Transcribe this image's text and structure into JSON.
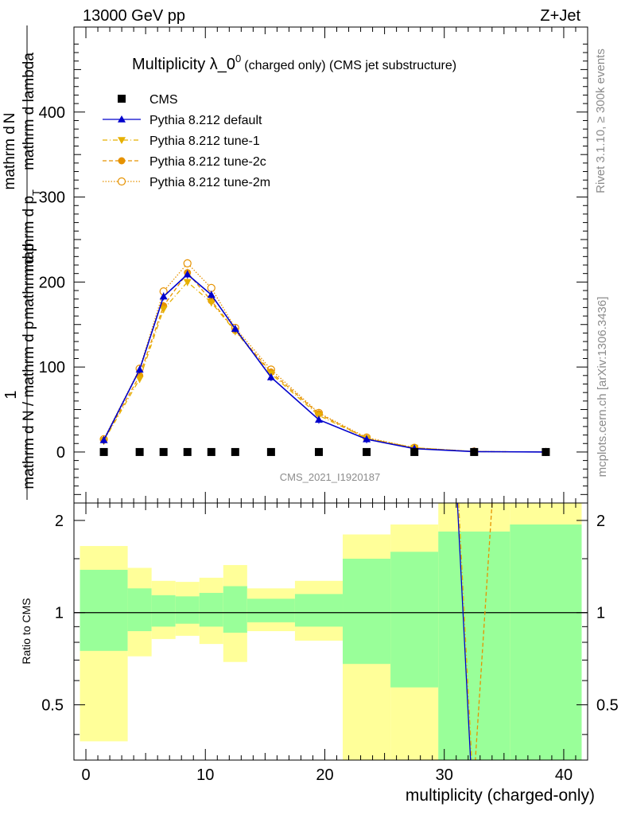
{
  "header": {
    "left": "13000 GeV pp",
    "right": "Z+Jet"
  },
  "side": {
    "rivet": "Rivet 3.1.10, ≥ 300k events",
    "mcplots": "mcplots.cern.ch [arXiv:1306.3436]"
  },
  "chart_data": [
    {
      "type": "scatter",
      "title_main": "Multiplicity λ_0",
      "title_sup": "0",
      "title_sub": "(charged only) (CMS jet substructure)",
      "ylabel_line1": "1",
      "ylabel_line2a": "mathrm d N / mathrm d p",
      "ylabel_line2b": "mathrm d p",
      "ylabel_line2c": "mathrm d lambda",
      "ylabel_num": "mathrm d",
      "ylabel_num2": "N",
      "ylabel_sub": "T",
      "ylabel_mid": "mathrm d p",
      "watermark": "CMS_2021_I1920187",
      "xlim": [
        -1,
        42
      ],
      "ylim": [
        -60,
        500
      ],
      "yticks": [
        0,
        100,
        200,
        300,
        400
      ],
      "ytick_labels": [
        "0",
        "100",
        "200",
        "300",
        "400"
      ],
      "x": [
        1.5,
        4.5,
        6.5,
        8.5,
        10.5,
        12.5,
        15.5,
        19.5,
        23.5,
        27.5,
        32.5,
        38.5
      ],
      "legend": [
        {
          "name": "CMS",
          "color": "#000000",
          "marker": "square"
        },
        {
          "name": "Pythia 8.212 default",
          "color": "#0000cc",
          "marker": "triangle-up"
        },
        {
          "name": "Pythia 8.212 tune-1",
          "color": "#e6b000",
          "marker": "triangle-down"
        },
        {
          "name": "Pythia 8.212 tune-2c",
          "color": "#e69200",
          "marker": "circle"
        },
        {
          "name": "Pythia 8.212 tune-2m",
          "color": "#e69200",
          "marker": "open-circle"
        }
      ],
      "series": [
        {
          "name": "CMS",
          "values": [
            0,
            0,
            0,
            0,
            0,
            0,
            0,
            0,
            0,
            0,
            0,
            0
          ]
        },
        {
          "name": "Pythia 8.212 default",
          "values": [
            14,
            97,
            183,
            209,
            185,
            145,
            88,
            38,
            15,
            4,
            0.5,
            0
          ]
        },
        {
          "name": "Pythia 8.212 tune-1",
          "values": [
            13,
            86,
            168,
            200,
            176,
            142,
            92,
            43,
            16,
            5,
            0.5,
            0
          ]
        },
        {
          "name": "Pythia 8.212 tune-2c",
          "values": [
            14,
            90,
            172,
            211,
            178,
            143,
            94,
            45,
            16,
            5,
            0.6,
            0
          ]
        },
        {
          "name": "Pythia 8.212 tune-2m",
          "values": [
            15,
            98,
            189,
            222,
            193,
            146,
            97,
            46,
            17,
            5,
            0.6,
            0
          ]
        }
      ]
    },
    {
      "type": "band",
      "ylabel": "Ratio to CMS",
      "xlabel": "multiplicity (charged-only)",
      "ylim": [
        0.33,
        2.28
      ],
      "yticks": [
        0.5,
        1,
        2
      ],
      "ytick_labels": [
        "0.5",
        "1",
        "2"
      ],
      "xticks": [
        0,
        10,
        20,
        30,
        40
      ],
      "xtick_labels": [
        "0",
        "10",
        "20",
        "30",
        "40"
      ],
      "bins": [
        {
          "lo": -0.5,
          "hi": 3.5,
          "yel": [
            0.38,
            1.65
          ],
          "grn": [
            0.75,
            1.38
          ]
        },
        {
          "lo": 3.5,
          "hi": 5.5,
          "yel": [
            0.72,
            1.4
          ],
          "grn": [
            0.87,
            1.2
          ]
        },
        {
          "lo": 5.5,
          "hi": 7.5,
          "yel": [
            0.82,
            1.27
          ],
          "grn": [
            0.9,
            1.14
          ]
        },
        {
          "lo": 7.5,
          "hi": 9.5,
          "yel": [
            0.84,
            1.26
          ],
          "grn": [
            0.92,
            1.13
          ]
        },
        {
          "lo": 9.5,
          "hi": 11.5,
          "yel": [
            0.79,
            1.3
          ],
          "grn": [
            0.9,
            1.16
          ]
        },
        {
          "lo": 11.5,
          "hi": 13.5,
          "yel": [
            0.69,
            1.43
          ],
          "grn": [
            0.86,
            1.22
          ]
        },
        {
          "lo": 13.5,
          "hi": 17.5,
          "yel": [
            0.87,
            1.2
          ],
          "grn": [
            0.93,
            1.11
          ]
        },
        {
          "lo": 17.5,
          "hi": 21.5,
          "yel": [
            0.81,
            1.27
          ],
          "grn": [
            0.9,
            1.15
          ]
        },
        {
          "lo": 21.5,
          "hi": 25.5,
          "yel": [
            0.33,
            1.8
          ],
          "grn": [
            0.68,
            1.5
          ]
        },
        {
          "lo": 25.5,
          "hi": 29.5,
          "yel": [
            0.33,
            1.94
          ],
          "grn": [
            0.57,
            1.58
          ]
        },
        {
          "lo": 29.5,
          "hi": 35.5,
          "yel": [
            0.33,
            2.28
          ],
          "grn": [
            0.33,
            1.84
          ]
        },
        {
          "lo": 35.5,
          "hi": 41.5,
          "yel": [
            0.33,
            2.28
          ],
          "grn": [
            0.33,
            1.94
          ]
        }
      ],
      "ref": 1,
      "lines": [
        {
          "name": "Pythia 8.212 default",
          "color": "#0000cc",
          "from": [
            31.1,
            2.28
          ],
          "to": [
            32.2,
            0.33
          ]
        },
        {
          "name": "Pythia 8.212 tune-1",
          "color": "#e6b000",
          "from": [
            31.2,
            2.28
          ],
          "to": [
            32.3,
            0.33
          ]
        },
        {
          "name": "Pythia 8.212 tune-2c",
          "color": "#e69200",
          "from": [
            34.0,
            2.28
          ],
          "to": [
            32.6,
            0.33
          ]
        }
      ]
    }
  ]
}
